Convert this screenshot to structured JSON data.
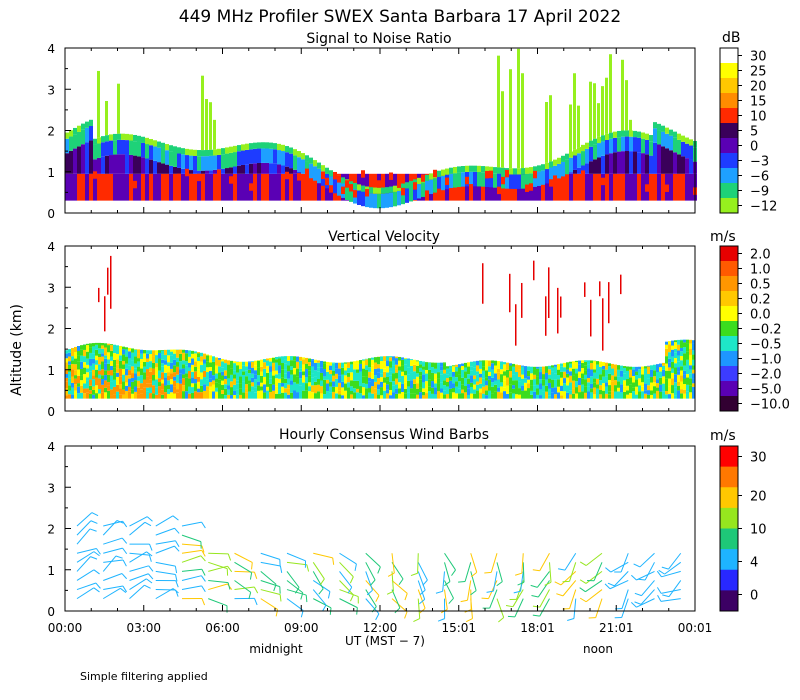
{
  "chart_data": [
    {
      "type": "heatmap",
      "title": "Signal to Noise Ratio",
      "unit": "dB",
      "ylim": [
        0,
        4
      ],
      "yticks": [
        "0",
        "1",
        "2",
        "3",
        "4"
      ],
      "colorbar": {
        "labels": [
          "30",
          "25",
          "20",
          "15",
          "10",
          "5",
          "0",
          "−3",
          "−6",
          "−9",
          "−12"
        ],
        "colors": [
          "#ffffff",
          "#ffff00",
          "#ffc800",
          "#ff8c00",
          "#ff2a00",
          "#3a005a",
          "#5a00b4",
          "#1e3cff",
          "#1ea0ff",
          "#1ed278",
          "#96f01e"
        ]
      }
    },
    {
      "type": "heatmap",
      "title": "Vertical Velocity",
      "unit": "m/s",
      "ylim": [
        0,
        4
      ],
      "yticks": [
        "0",
        "1",
        "2",
        "3",
        "4"
      ],
      "colorbar": {
        "labels": [
          "2.0",
          "1.0",
          "0.5",
          "0.2",
          "0.0",
          "−0.2",
          "−0.5",
          "−1.0",
          "−2.0",
          "−5.0",
          "−10.0"
        ],
        "colors": [
          "#e60000",
          "#ff5a00",
          "#ff9600",
          "#ffc800",
          "#ffff00",
          "#3cdc1e",
          "#1ee6c8",
          "#1e96ff",
          "#3c3cff",
          "#5a00b4",
          "#320032"
        ]
      }
    },
    {
      "type": "scatter",
      "title": "Hourly Consensus Wind Barbs",
      "unit": "m/s",
      "ylim": [
        0,
        4
      ],
      "yticks": [
        "0",
        "1",
        "2",
        "3",
        "4"
      ],
      "colorbar": {
        "labels": [
          "30",
          "20",
          "10",
          "4",
          "0"
        ],
        "colors": [
          "#ff0000",
          "#ff7800",
          "#ffc800",
          "#96e61e",
          "#1ec878",
          "#1eb4ff",
          "#2828ff",
          "#3c0064"
        ]
      },
      "xlabel": "UT  (MST − 7)",
      "xticks": [
        "00:00",
        "03:00",
        "06:00",
        "09:00",
        "12:00",
        "15:01",
        "18:01",
        "21:01",
        "00:01"
      ],
      "x_annotations": [
        "midnight",
        "noon"
      ]
    }
  ],
  "figure": {
    "title": "449 MHz Profiler SWEX Santa Barbara 17 April 2022",
    "ylabel": "Altitude (km)",
    "footnote": "Simple filtering applied"
  }
}
